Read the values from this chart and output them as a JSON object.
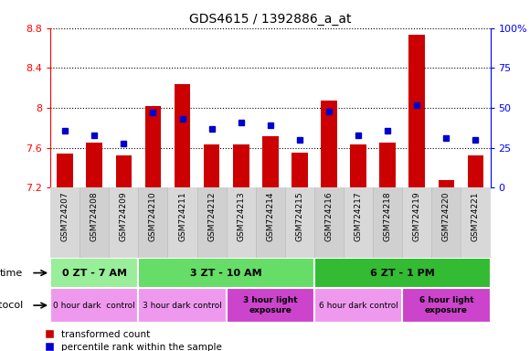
{
  "title": "GDS4615 / 1392886_a_at",
  "samples": [
    "GSM724207",
    "GSM724208",
    "GSM724209",
    "GSM724210",
    "GSM724211",
    "GSM724212",
    "GSM724213",
    "GSM724214",
    "GSM724215",
    "GSM724216",
    "GSM724217",
    "GSM724218",
    "GSM724219",
    "GSM724220",
    "GSM724221"
  ],
  "transformed_count": [
    7.54,
    7.65,
    7.52,
    8.02,
    8.24,
    7.63,
    7.63,
    7.72,
    7.55,
    8.07,
    7.63,
    7.65,
    8.73,
    7.28,
    7.52
  ],
  "percentile_rank": [
    36,
    33,
    28,
    47,
    43,
    37,
    41,
    39,
    30,
    48,
    33,
    36,
    52,
    31,
    30
  ],
  "ylim_left": [
    7.2,
    8.8
  ],
  "ylim_right": [
    0,
    100
  ],
  "yticks_left": [
    7.2,
    7.6,
    8.0,
    8.4,
    8.8
  ],
  "yticks_right": [
    0,
    25,
    50,
    75,
    100
  ],
  "ytick_labels_left": [
    "7.2",
    "7.6",
    "8",
    "8.4",
    "8.8"
  ],
  "ytick_labels_right": [
    "0",
    "25",
    "50",
    "75",
    "100%"
  ],
  "bar_color": "#cc0000",
  "dot_color": "#0000cc",
  "bar_bottom": 7.2,
  "time_groups": [
    {
      "label": "0 ZT - 7 AM",
      "start": 0,
      "end": 3,
      "color": "#99ee99"
    },
    {
      "label": "3 ZT - 10 AM",
      "start": 3,
      "end": 9,
      "color": "#66dd66"
    },
    {
      "label": "6 ZT - 1 PM",
      "start": 9,
      "end": 15,
      "color": "#33bb33"
    }
  ],
  "protocol_groups": [
    {
      "label": "0 hour dark  control",
      "start": 0,
      "end": 3,
      "color": "#ee99ee",
      "bold": false
    },
    {
      "label": "3 hour dark control",
      "start": 3,
      "end": 6,
      "color": "#ee99ee",
      "bold": false
    },
    {
      "label": "3 hour light\nexposure",
      "start": 6,
      "end": 9,
      "color": "#cc44cc",
      "bold": true
    },
    {
      "label": "6 hour dark control",
      "start": 9,
      "end": 12,
      "color": "#ee99ee",
      "bold": false
    },
    {
      "label": "6 hour light\nexposure",
      "start": 12,
      "end": 15,
      "color": "#cc44cc",
      "bold": true
    }
  ]
}
